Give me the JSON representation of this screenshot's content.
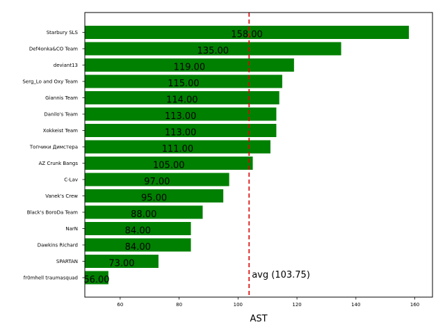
{
  "chart_data": {
    "type": "bar",
    "orientation": "horizontal",
    "categories": [
      "Starbury SLS",
      "Def4onka&CO Team",
      "deviant13",
      "Serg_Lo and Oxy Team",
      "Giannis Team",
      "Danilo's Team",
      "Xokkeist Team",
      "Топчики Димстера",
      "AZ Crunk Bangs",
      "C-Lav",
      "Vanek's Crew",
      "Black's BoroDa Team",
      "NarN",
      "Dawkins Richard",
      "SPARTAN",
      "fr0mhell traumasquad"
    ],
    "values": [
      158,
      135,
      119,
      115,
      114,
      113,
      113,
      111,
      105,
      97,
      95,
      88,
      84,
      84,
      73,
      56
    ],
    "value_labels": [
      "158.00",
      "135.00",
      "119.00",
      "115.00",
      "114.00",
      "113.00",
      "113.00",
      "111.00",
      "105.00",
      "97.00",
      "95.00",
      "88.00",
      "84.00",
      "84.00",
      "73.00",
      "56.00"
    ],
    "xlabel": "AST",
    "ylabel": "",
    "xlim": [
      48,
      166
    ],
    "xticks": [
      60,
      80,
      100,
      120,
      140,
      160
    ],
    "average": 103.75,
    "average_label": "avg (103.75)",
    "bar_color": "#008000",
    "avg_line_color": "#dd0000",
    "grid": false
  }
}
